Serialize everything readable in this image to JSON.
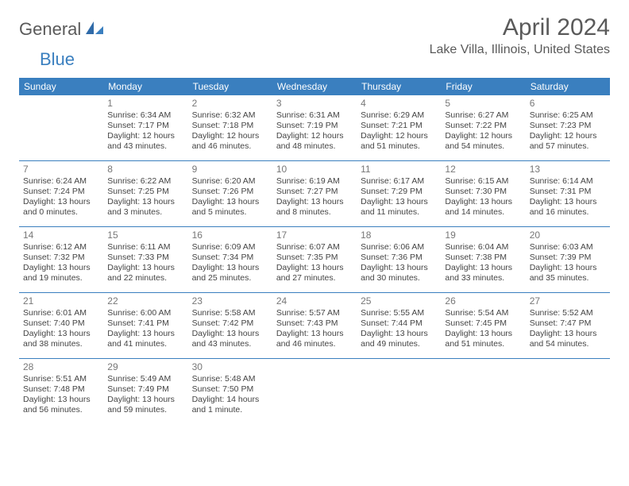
{
  "brand": {
    "part1": "General",
    "part2": "Blue"
  },
  "title": "April 2024",
  "location": "Lake Villa, Illinois, United States",
  "colors": {
    "header_bg": "#3a7fbf",
    "header_text": "#ffffff",
    "body_text": "#444444",
    "daynum_text": "#777777",
    "border": "#3a7fbf",
    "brand_gray": "#5a5a5a",
    "brand_blue": "#3a7fbf"
  },
  "days_of_week": [
    "Sunday",
    "Monday",
    "Tuesday",
    "Wednesday",
    "Thursday",
    "Friday",
    "Saturday"
  ],
  "weeks": [
    [
      {
        "empty": true
      },
      {
        "num": "1",
        "sunrise": "Sunrise: 6:34 AM",
        "sunset": "Sunset: 7:17 PM",
        "daylight1": "Daylight: 12 hours",
        "daylight2": "and 43 minutes."
      },
      {
        "num": "2",
        "sunrise": "Sunrise: 6:32 AM",
        "sunset": "Sunset: 7:18 PM",
        "daylight1": "Daylight: 12 hours",
        "daylight2": "and 46 minutes."
      },
      {
        "num": "3",
        "sunrise": "Sunrise: 6:31 AM",
        "sunset": "Sunset: 7:19 PM",
        "daylight1": "Daylight: 12 hours",
        "daylight2": "and 48 minutes."
      },
      {
        "num": "4",
        "sunrise": "Sunrise: 6:29 AM",
        "sunset": "Sunset: 7:21 PM",
        "daylight1": "Daylight: 12 hours",
        "daylight2": "and 51 minutes."
      },
      {
        "num": "5",
        "sunrise": "Sunrise: 6:27 AM",
        "sunset": "Sunset: 7:22 PM",
        "daylight1": "Daylight: 12 hours",
        "daylight2": "and 54 minutes."
      },
      {
        "num": "6",
        "sunrise": "Sunrise: 6:25 AM",
        "sunset": "Sunset: 7:23 PM",
        "daylight1": "Daylight: 12 hours",
        "daylight2": "and 57 minutes."
      }
    ],
    [
      {
        "num": "7",
        "sunrise": "Sunrise: 6:24 AM",
        "sunset": "Sunset: 7:24 PM",
        "daylight1": "Daylight: 13 hours",
        "daylight2": "and 0 minutes."
      },
      {
        "num": "8",
        "sunrise": "Sunrise: 6:22 AM",
        "sunset": "Sunset: 7:25 PM",
        "daylight1": "Daylight: 13 hours",
        "daylight2": "and 3 minutes."
      },
      {
        "num": "9",
        "sunrise": "Sunrise: 6:20 AM",
        "sunset": "Sunset: 7:26 PM",
        "daylight1": "Daylight: 13 hours",
        "daylight2": "and 5 minutes."
      },
      {
        "num": "10",
        "sunrise": "Sunrise: 6:19 AM",
        "sunset": "Sunset: 7:27 PM",
        "daylight1": "Daylight: 13 hours",
        "daylight2": "and 8 minutes."
      },
      {
        "num": "11",
        "sunrise": "Sunrise: 6:17 AM",
        "sunset": "Sunset: 7:29 PM",
        "daylight1": "Daylight: 13 hours",
        "daylight2": "and 11 minutes."
      },
      {
        "num": "12",
        "sunrise": "Sunrise: 6:15 AM",
        "sunset": "Sunset: 7:30 PM",
        "daylight1": "Daylight: 13 hours",
        "daylight2": "and 14 minutes."
      },
      {
        "num": "13",
        "sunrise": "Sunrise: 6:14 AM",
        "sunset": "Sunset: 7:31 PM",
        "daylight1": "Daylight: 13 hours",
        "daylight2": "and 16 minutes."
      }
    ],
    [
      {
        "num": "14",
        "sunrise": "Sunrise: 6:12 AM",
        "sunset": "Sunset: 7:32 PM",
        "daylight1": "Daylight: 13 hours",
        "daylight2": "and 19 minutes."
      },
      {
        "num": "15",
        "sunrise": "Sunrise: 6:11 AM",
        "sunset": "Sunset: 7:33 PM",
        "daylight1": "Daylight: 13 hours",
        "daylight2": "and 22 minutes."
      },
      {
        "num": "16",
        "sunrise": "Sunrise: 6:09 AM",
        "sunset": "Sunset: 7:34 PM",
        "daylight1": "Daylight: 13 hours",
        "daylight2": "and 25 minutes."
      },
      {
        "num": "17",
        "sunrise": "Sunrise: 6:07 AM",
        "sunset": "Sunset: 7:35 PM",
        "daylight1": "Daylight: 13 hours",
        "daylight2": "and 27 minutes."
      },
      {
        "num": "18",
        "sunrise": "Sunrise: 6:06 AM",
        "sunset": "Sunset: 7:36 PM",
        "daylight1": "Daylight: 13 hours",
        "daylight2": "and 30 minutes."
      },
      {
        "num": "19",
        "sunrise": "Sunrise: 6:04 AM",
        "sunset": "Sunset: 7:38 PM",
        "daylight1": "Daylight: 13 hours",
        "daylight2": "and 33 minutes."
      },
      {
        "num": "20",
        "sunrise": "Sunrise: 6:03 AM",
        "sunset": "Sunset: 7:39 PM",
        "daylight1": "Daylight: 13 hours",
        "daylight2": "and 35 minutes."
      }
    ],
    [
      {
        "num": "21",
        "sunrise": "Sunrise: 6:01 AM",
        "sunset": "Sunset: 7:40 PM",
        "daylight1": "Daylight: 13 hours",
        "daylight2": "and 38 minutes."
      },
      {
        "num": "22",
        "sunrise": "Sunrise: 6:00 AM",
        "sunset": "Sunset: 7:41 PM",
        "daylight1": "Daylight: 13 hours",
        "daylight2": "and 41 minutes."
      },
      {
        "num": "23",
        "sunrise": "Sunrise: 5:58 AM",
        "sunset": "Sunset: 7:42 PM",
        "daylight1": "Daylight: 13 hours",
        "daylight2": "and 43 minutes."
      },
      {
        "num": "24",
        "sunrise": "Sunrise: 5:57 AM",
        "sunset": "Sunset: 7:43 PM",
        "daylight1": "Daylight: 13 hours",
        "daylight2": "and 46 minutes."
      },
      {
        "num": "25",
        "sunrise": "Sunrise: 5:55 AM",
        "sunset": "Sunset: 7:44 PM",
        "daylight1": "Daylight: 13 hours",
        "daylight2": "and 49 minutes."
      },
      {
        "num": "26",
        "sunrise": "Sunrise: 5:54 AM",
        "sunset": "Sunset: 7:45 PM",
        "daylight1": "Daylight: 13 hours",
        "daylight2": "and 51 minutes."
      },
      {
        "num": "27",
        "sunrise": "Sunrise: 5:52 AM",
        "sunset": "Sunset: 7:47 PM",
        "daylight1": "Daylight: 13 hours",
        "daylight2": "and 54 minutes."
      }
    ],
    [
      {
        "num": "28",
        "sunrise": "Sunrise: 5:51 AM",
        "sunset": "Sunset: 7:48 PM",
        "daylight1": "Daylight: 13 hours",
        "daylight2": "and 56 minutes."
      },
      {
        "num": "29",
        "sunrise": "Sunrise: 5:49 AM",
        "sunset": "Sunset: 7:49 PM",
        "daylight1": "Daylight: 13 hours",
        "daylight2": "and 59 minutes."
      },
      {
        "num": "30",
        "sunrise": "Sunrise: 5:48 AM",
        "sunset": "Sunset: 7:50 PM",
        "daylight1": "Daylight: 14 hours",
        "daylight2": "and 1 minute."
      },
      {
        "empty": true
      },
      {
        "empty": true
      },
      {
        "empty": true
      },
      {
        "empty": true
      }
    ]
  ]
}
